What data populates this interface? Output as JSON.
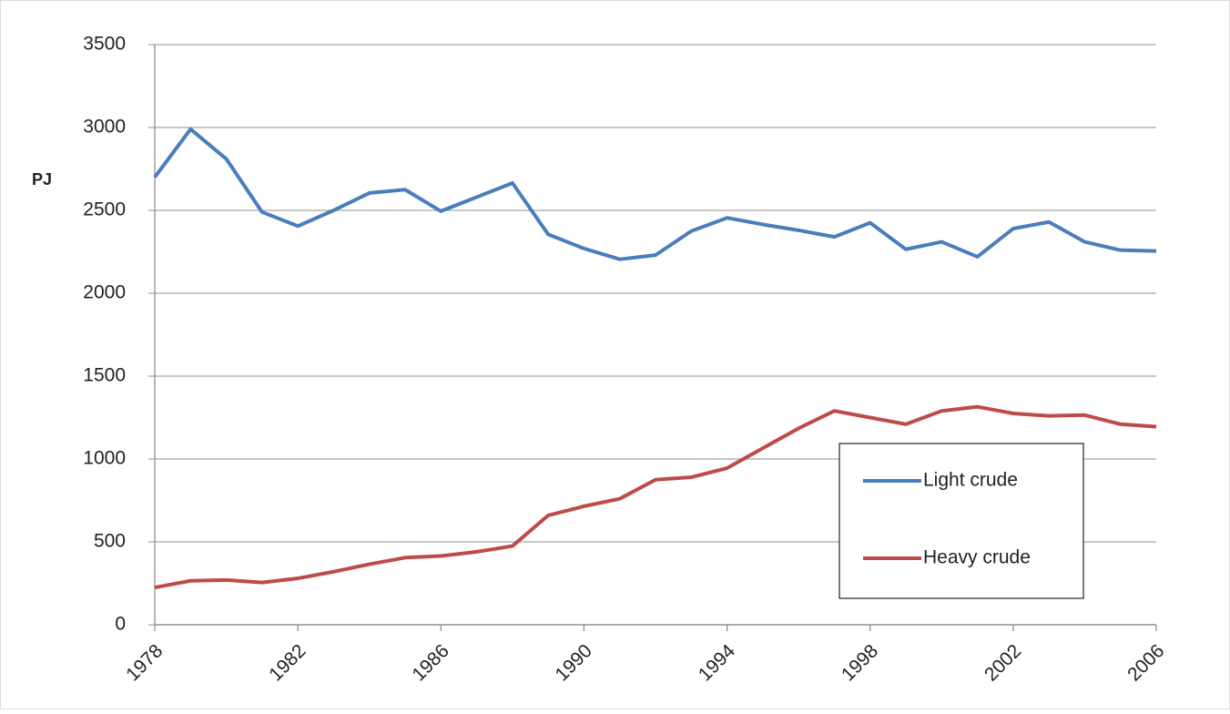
{
  "chart_data": {
    "type": "line",
    "y_label": "PJ",
    "x": [
      1978,
      1979,
      1980,
      1981,
      1982,
      1983,
      1984,
      1985,
      1986,
      1987,
      1988,
      1989,
      1990,
      1991,
      1992,
      1993,
      1994,
      1995,
      1996,
      1997,
      1998,
      1999,
      2000,
      2001,
      2002,
      2003,
      2004,
      2005,
      2006
    ],
    "series": [
      {
        "name": "Light crude",
        "color": "#4a7ebb",
        "values": [
          2700,
          2990,
          2810,
          2490,
          2405,
          2500,
          2605,
          2625,
          2495,
          2580,
          2665,
          2355,
          2270,
          2205,
          2230,
          2375,
          2455,
          2415,
          2380,
          2340,
          2425,
          2265,
          2310,
          2220,
          2390,
          2430,
          2310,
          2260,
          2255
        ]
      },
      {
        "name": "Heavy crude",
        "color": "#be4b48",
        "values": [
          225,
          265,
          270,
          255,
          280,
          320,
          365,
          405,
          415,
          440,
          475,
          660,
          715,
          760,
          875,
          890,
          945,
          1065,
          1185,
          1290,
          1250,
          1210,
          1290,
          1315,
          1275,
          1260,
          1265,
          1210,
          1195
        ]
      }
    ],
    "xlim": [
      1978,
      2006
    ],
    "xticks": [
      1978,
      1982,
      1986,
      1990,
      1994,
      1998,
      2002,
      2006
    ],
    "ylim": [
      0,
      3500
    ],
    "yticks": [
      0,
      500,
      1000,
      1500,
      2000,
      2500,
      3000,
      3500
    ],
    "grid": true
  }
}
